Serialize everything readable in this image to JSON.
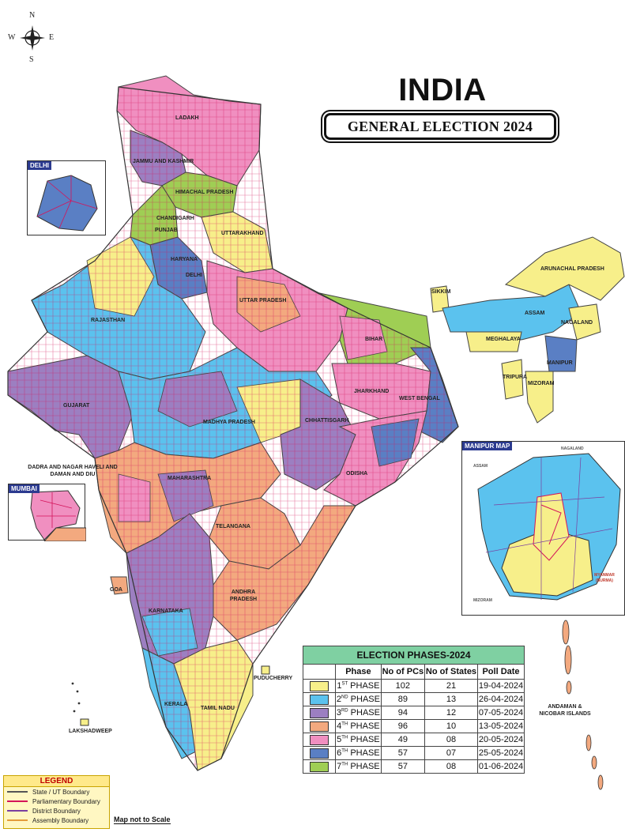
{
  "compass": {
    "n": "N",
    "s": "S",
    "e": "E",
    "w": "W"
  },
  "title": "INDIA",
  "subtitle": "GENERAL ELECTION 2024",
  "insets": {
    "delhi": "DELHI",
    "mumbai": "MUMBAI",
    "manipur": "MANIPUR MAP",
    "manipur_labels": {
      "nagaland": "NAGALAND",
      "assam": "ASSAM",
      "mizoram": "MIZORAM",
      "myanmar": "MYANMAR (BURMA)"
    }
  },
  "state_labels": {
    "ladakh": "LADAKH",
    "jk": "JAMMU AND KASHMIR",
    "hp": "HIMACHAL PRADESH",
    "chandigarh": "CHANDIGARH",
    "punjab": "PUNJAB",
    "uttarakhand": "UTTARAKHAND",
    "haryana": "HARYANA",
    "delhi": "DELHI",
    "rajasthan": "RAJASTHAN",
    "up": "UTTAR PRADESH",
    "sikkim": "SIKKIM",
    "arunachal": "ARUNACHAL PRADESH",
    "assam": "ASSAM",
    "nagaland": "NAGALAND",
    "meghalaya": "MEGHALAYA",
    "bihar": "BIHAR",
    "manipur": "MANIPUR",
    "tripura": "TRIPURA",
    "mizoram": "MIZORAM",
    "gujarat": "GUJARAT",
    "jharkhand": "JHARKHAND",
    "westbengal": "WEST BENGAL",
    "mp": "MADHYA PRADESH",
    "chhattisgarh": "CHHATTISGARH",
    "dnh": "DADRA AND NAGAR HAVELI AND DAMAN AND DIU",
    "maharashtra": "MAHARASHTRA",
    "odisha": "ODISHA",
    "telangana": "TELANGANA",
    "goa": "GOA",
    "ap": "ANDHRA PRADESH",
    "karnataka": "KARNATAKA",
    "puducherry": "PUDUCHERRY",
    "tamilnadu": "TAMIL NADU",
    "kerala": "KERALA",
    "lakshadweep": "LAKSHADWEEP",
    "andaman": "ANDAMAN & NICOBAR ISLANDS"
  },
  "phase_table": {
    "title": "ELECTION PHASES-2024",
    "headers": [
      "Phase",
      "No of PCs",
      "No of States",
      "Poll Date"
    ],
    "rows": [
      {
        "num": "1",
        "sup": "ST",
        "word": "PHASE",
        "pcs": "102",
        "states": "21",
        "date": "19-04-2024",
        "color": "#f7ef8a"
      },
      {
        "num": "2",
        "sup": "ND",
        "word": "PHASE",
        "pcs": "89",
        "states": "13",
        "date": "26-04-2024",
        "color": "#5bc2ee"
      },
      {
        "num": "3",
        "sup": "RD",
        "word": "PHASE",
        "pcs": "94",
        "states": "12",
        "date": "07-05-2024",
        "color": "#9c7fc1"
      },
      {
        "num": "4",
        "sup": "TH",
        "word": "PHASE",
        "pcs": "96",
        "states": "10",
        "date": "13-05-2024",
        "color": "#f3a97f"
      },
      {
        "num": "5",
        "sup": "TH",
        "word": "PHASE",
        "pcs": "49",
        "states": "08",
        "date": "20-05-2024",
        "color": "#f08fc0"
      },
      {
        "num": "6",
        "sup": "TH",
        "word": "PHASE",
        "pcs": "57",
        "states": "07",
        "date": "25-05-2024",
        "color": "#5a7fc4"
      },
      {
        "num": "7",
        "sup": "TH",
        "word": "PHASE",
        "pcs": "57",
        "states": "08",
        "date": "01-06-2024",
        "color": "#9fce54"
      }
    ]
  },
  "legend": {
    "title": "LEGEND",
    "items": [
      {
        "label": "State / UT Boundary",
        "color": "#555555"
      },
      {
        "label": "Parliamentary Boundary",
        "color": "#d4145a"
      },
      {
        "label": "District Boundary",
        "color": "#7a3fa0"
      },
      {
        "label": "Assembly Boundary",
        "color": "#e39b3a"
      }
    ]
  },
  "scale_note": "Map not to Scale"
}
